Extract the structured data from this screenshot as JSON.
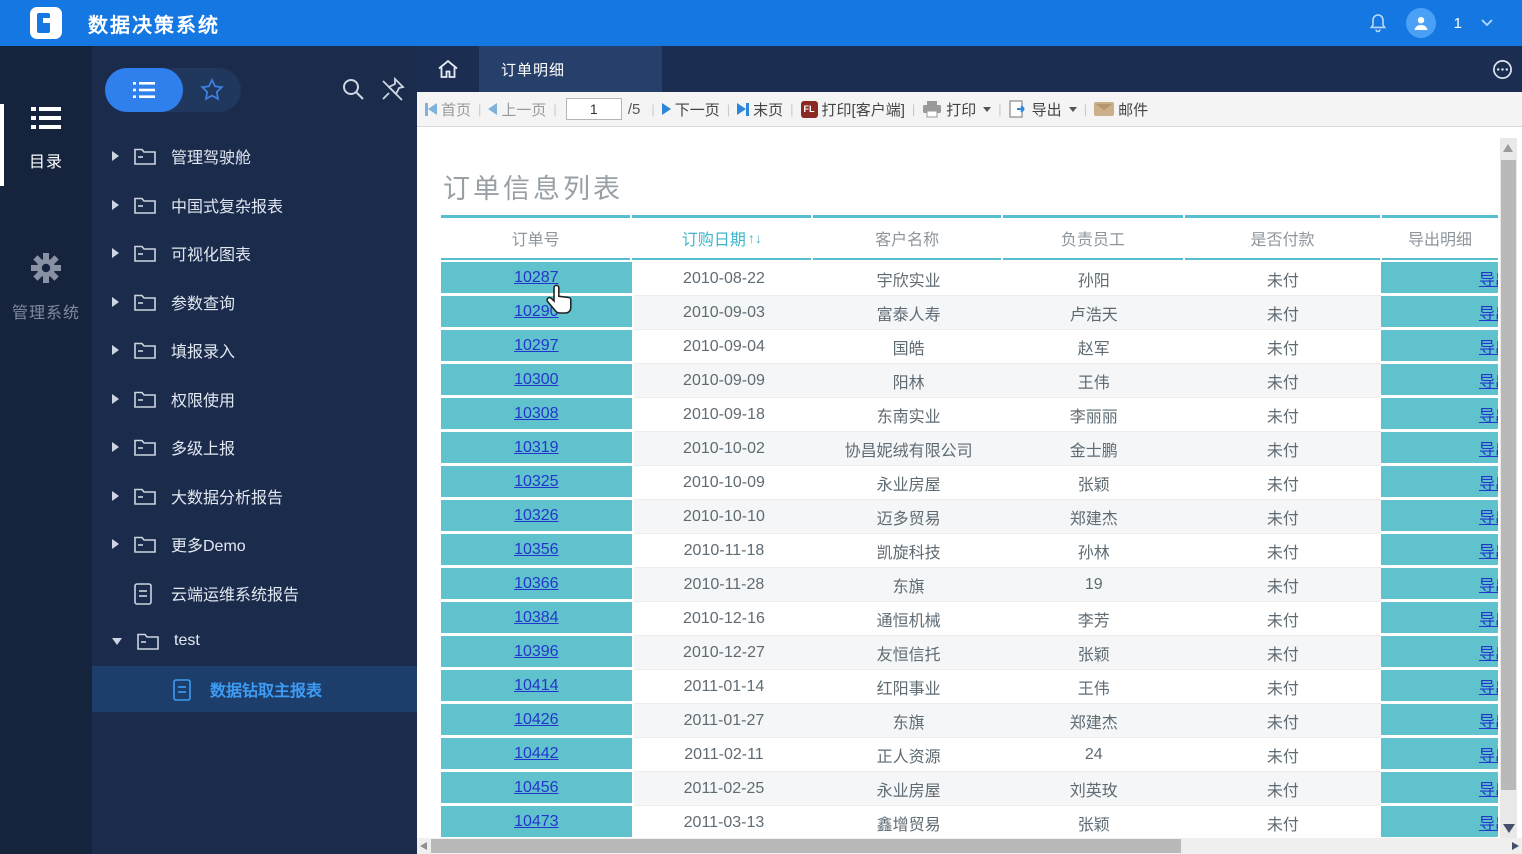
{
  "topbar": {
    "title": "数据决策系统",
    "user_count": "1"
  },
  "rail": {
    "catalog_label": "目录",
    "admin_label": "管理系统"
  },
  "sidebar": {
    "menu": [
      {
        "caret": "right",
        "icon": "folder",
        "label": "管理驾驶舱",
        "selected": false
      },
      {
        "caret": "right",
        "icon": "folder",
        "label": "中国式复杂报表",
        "selected": false
      },
      {
        "caret": "right",
        "icon": "folder",
        "label": "可视化图表",
        "selected": false
      },
      {
        "caret": "right",
        "icon": "folder",
        "label": "参数查询",
        "selected": false
      },
      {
        "caret": "right",
        "icon": "folder",
        "label": "填报录入",
        "selected": false
      },
      {
        "caret": "right",
        "icon": "folder",
        "label": "权限使用",
        "selected": false
      },
      {
        "caret": "right",
        "icon": "folder",
        "label": "多级上报",
        "selected": false
      },
      {
        "caret": "right",
        "icon": "folder",
        "label": "大数据分析报告",
        "selected": false
      },
      {
        "caret": "right",
        "icon": "folder",
        "label": "更多Demo",
        "selected": false
      },
      {
        "caret": "none",
        "icon": "file",
        "label": "云端运维系统报告",
        "selected": false
      },
      {
        "caret": "down",
        "icon": "folder",
        "label": "test",
        "selected": false
      },
      {
        "caret": "none",
        "icon": "file",
        "label": "数据钻取主报表",
        "selected": true
      }
    ]
  },
  "tabbar": {
    "active_tab": "订单明细"
  },
  "toolbar": {
    "first": "首页",
    "prev": "上一页",
    "page_value": "1",
    "page_total": "/5",
    "next": "下一页",
    "last": "末页",
    "print_client": "打印[客户端]",
    "fl_badge": "FL",
    "print": "打印",
    "export": "导出",
    "mail": "邮件"
  },
  "report": {
    "title": "订单信息列表"
  },
  "table": {
    "headers": [
      "订单号",
      "订购日期",
      "客户名称",
      "负责员工",
      "是否付款",
      "导出明细"
    ],
    "sort_arrows": "↑↓",
    "export_link_label": "导出",
    "rows": [
      {
        "order_id": "10287",
        "date": "2010-08-22",
        "customer": "宇欣实业",
        "employee": "孙阳",
        "paid": "未付"
      },
      {
        "order_id": "10290",
        "date": "2010-09-03",
        "customer": "富泰人寿",
        "employee": "卢浩天",
        "paid": "未付"
      },
      {
        "order_id": "10297",
        "date": "2010-09-04",
        "customer": "国皓",
        "employee": "赵军",
        "paid": "未付"
      },
      {
        "order_id": "10300",
        "date": "2010-09-09",
        "customer": "阳林",
        "employee": "王伟",
        "paid": "未付"
      },
      {
        "order_id": "10308",
        "date": "2010-09-18",
        "customer": "东南实业",
        "employee": "李丽丽",
        "paid": "未付"
      },
      {
        "order_id": "10319",
        "date": "2010-10-02",
        "customer": "协昌妮绒有限公司",
        "employee": "金士鹏",
        "paid": "未付"
      },
      {
        "order_id": "10325",
        "date": "2010-10-09",
        "customer": "永业房屋",
        "employee": "张颖",
        "paid": "未付"
      },
      {
        "order_id": "10326",
        "date": "2010-10-10",
        "customer": "迈多贸易",
        "employee": "郑建杰",
        "paid": "未付"
      },
      {
        "order_id": "10356",
        "date": "2010-11-18",
        "customer": "凯旋科技",
        "employee": "孙林",
        "paid": "未付"
      },
      {
        "order_id": "10366",
        "date": "2010-11-28",
        "customer": "东旗",
        "employee": "19",
        "paid": "未付"
      },
      {
        "order_id": "10384",
        "date": "2010-12-16",
        "customer": "通恒机械",
        "employee": "李芳",
        "paid": "未付"
      },
      {
        "order_id": "10396",
        "date": "2010-12-27",
        "customer": "友恒信托",
        "employee": "张颖",
        "paid": "未付"
      },
      {
        "order_id": "10414",
        "date": "2011-01-14",
        "customer": "红阳事业",
        "employee": "王伟",
        "paid": "未付"
      },
      {
        "order_id": "10426",
        "date": "2011-01-27",
        "customer": "东旗",
        "employee": "郑建杰",
        "paid": "未付"
      },
      {
        "order_id": "10442",
        "date": "2011-02-11",
        "customer": "正人资源",
        "employee": "24",
        "paid": "未付"
      },
      {
        "order_id": "10456",
        "date": "2011-02-25",
        "customer": "永业房屋",
        "employee": "刘英玫",
        "paid": "未付"
      },
      {
        "order_id": "10473",
        "date": "2011-03-13",
        "customer": "鑫增贸易",
        "employee": "张颖",
        "paid": "未付"
      }
    ]
  },
  "colors": {
    "topbar_blue": "#1577e2",
    "sidebar_navy": "#1b2b4c",
    "tabbar_navy": "#1b2e51",
    "table_teal": "#60c2cd",
    "header_border_teal": "#55bfcd",
    "link_blue": "#2336cc",
    "accent_pill_blue": "#2f80ed",
    "selected_item_blue": "#1d3e6b"
  }
}
